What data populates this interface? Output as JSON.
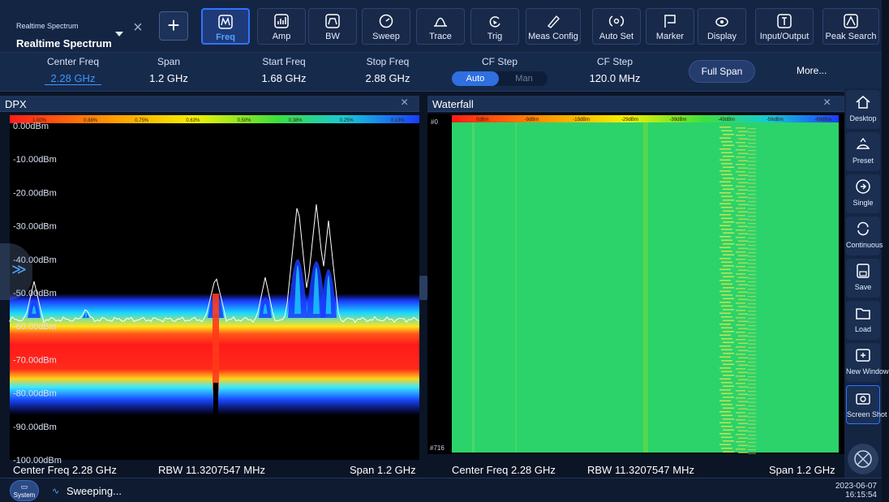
{
  "mode": {
    "small": "Realtime Spectrum",
    "big": "Realtime Spectrum"
  },
  "toolbar": {
    "buttons": [
      {
        "label": "Freq",
        "icon": "freq-icon",
        "active": true
      },
      {
        "label": "Amp",
        "icon": "amp-icon"
      },
      {
        "label": "BW",
        "icon": "bw-icon"
      },
      {
        "label": "Sweep",
        "icon": "sweep-icon"
      },
      {
        "label": "Trace",
        "icon": "trace-icon"
      },
      {
        "label": "Trig",
        "icon": "trig-icon"
      },
      {
        "label": "Meas Config",
        "icon": "meas-config-icon"
      },
      {
        "label": "Auto Set",
        "icon": "auto-set-icon"
      },
      {
        "label": "Marker",
        "icon": "marker-icon"
      },
      {
        "label": "Display",
        "icon": "display-icon"
      },
      {
        "label": "Input/Output",
        "icon": "input-output-icon"
      },
      {
        "label": "Peak Search",
        "icon": "peak-search-icon"
      }
    ]
  },
  "params": {
    "center_freq": {
      "title": "Center Freq",
      "value": "2.28 GHz"
    },
    "span": {
      "title": "Span",
      "value": "1.2 GHz"
    },
    "start_freq": {
      "title": "Start Freq",
      "value": "1.68 GHz"
    },
    "stop_freq": {
      "title": "Stop Freq",
      "value": "2.88 GHz"
    },
    "cf_step_mode": {
      "title": "CF Step",
      "auto": "Auto",
      "man": "Man"
    },
    "cf_step": {
      "title": "CF Step",
      "value": "120.0 MHz"
    },
    "full_span": "Full Span",
    "more": "More..."
  },
  "dpx": {
    "title": "DPX",
    "colorbar": [
      "1.00%",
      "0.88%",
      "0.75%",
      "0.63%",
      "0.50%",
      "0.38%",
      "0.25%",
      "0.13%"
    ],
    "y_labels": [
      "0.00dBm",
      "-10.00dBm",
      "-20.00dBm",
      "-30.00dBm",
      "-40.00dBm",
      "-50.00dBm",
      "-60.00dBm",
      "-70.00dBm",
      "-80.00dBm",
      "-90.00dBm",
      "-100.00dBm"
    ],
    "footer": {
      "center": "Center Freq 2.28 GHz",
      "rbw": "RBW 11.3207547 MHz",
      "span": "Span 1.2 GHz"
    }
  },
  "waterfall": {
    "title": "Waterfall",
    "top_index": "#0",
    "bottom_index": "#716",
    "colorbar": [
      "0dBm",
      "-9dBm",
      "-19dBm",
      "-29dBm",
      "-39dBm",
      "-49dBm",
      "-59dBm",
      "-69dBm"
    ],
    "footer": {
      "center": "Center Freq 2.28 GHz",
      "rbw": "RBW 11.3207547 MHz",
      "span": "Span 1.2 GHz"
    }
  },
  "sidebar": [
    {
      "label": "Desktop",
      "icon": "home-icon"
    },
    {
      "label": "Preset",
      "icon": "preset-icon"
    },
    {
      "label": "Single",
      "icon": "single-icon"
    },
    {
      "label": "Continuous",
      "icon": "continuous-icon"
    },
    {
      "label": "Save",
      "icon": "save-icon"
    },
    {
      "label": "Load",
      "icon": "folder-icon"
    },
    {
      "label": "New Window",
      "icon": "new-window-icon"
    },
    {
      "label": "Screen Shot",
      "icon": "camera-icon"
    }
  ],
  "status": {
    "system": "System",
    "sweeping": "Sweeping...",
    "date": "2023-06-07",
    "time": "16:15:54"
  },
  "colors": {
    "accent": "#2f74ff",
    "panel_bg": "#1b3256",
    "waterfall": "#2cd36a",
    "trace": "#ffffff"
  }
}
